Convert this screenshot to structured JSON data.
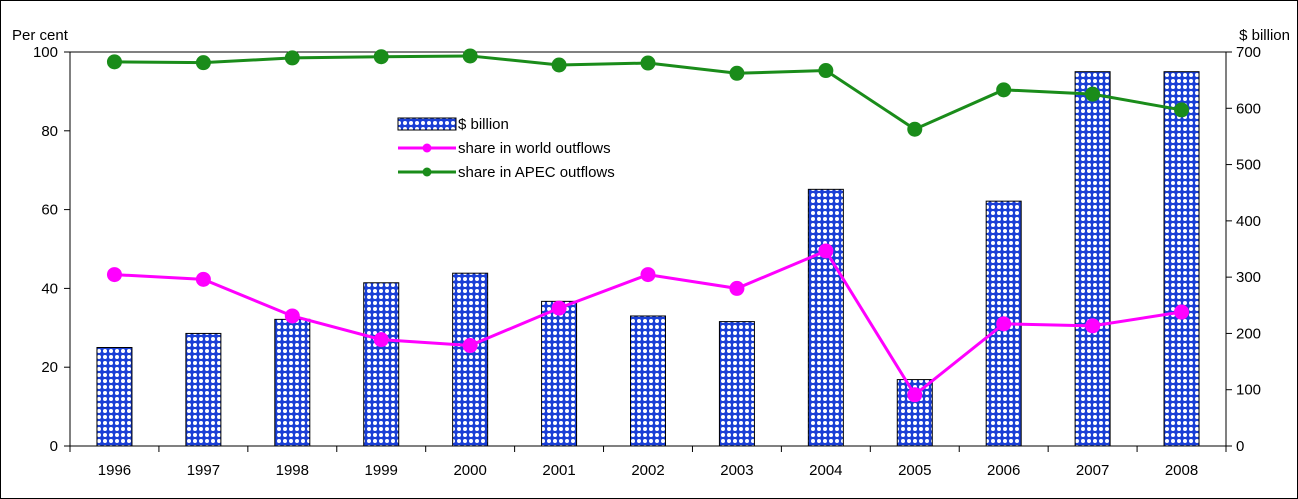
{
  "chart_data": {
    "type": "bar",
    "categories": [
      "1996",
      "1997",
      "1998",
      "1999",
      "2000",
      "2001",
      "2002",
      "2003",
      "2004",
      "2005",
      "2006",
      "2007",
      "2008"
    ],
    "left_axis": {
      "label": "Per cent",
      "ylim": [
        0,
        100
      ],
      "ticks": [
        "0",
        "20",
        "40",
        "60",
        "80",
        "100"
      ]
    },
    "right_axis": {
      "label": "$ billion",
      "ylim": [
        0,
        700
      ],
      "ticks": [
        "0",
        "100",
        "200",
        "300",
        "400",
        "500",
        "600",
        "700"
      ]
    },
    "series": [
      {
        "name": "$ billion",
        "kind": "bar",
        "axis": "right",
        "color": "#1a3fd6",
        "values": [
          175,
          200,
          225,
          290,
          307,
          257,
          231,
          221,
          456,
          118,
          435,
          665,
          665
        ]
      },
      {
        "name": "share in world outflows",
        "kind": "line",
        "axis": "left",
        "color": "#ff00ff",
        "values": [
          43.5,
          42.3,
          33.0,
          27.0,
          25.5,
          35.0,
          43.5,
          40.0,
          49.5,
          13.0,
          31.0,
          30.5,
          34.0
        ]
      },
      {
        "name": "share in APEC outflows",
        "kind": "line",
        "axis": "left",
        "color": "#1a8c1a",
        "values": [
          97.5,
          97.3,
          98.5,
          98.8,
          99.0,
          96.7,
          97.2,
          94.6,
          95.3,
          80.4,
          90.4,
          89.3,
          85.3
        ]
      }
    ],
    "grid": false,
    "legend_position": "top-center"
  }
}
